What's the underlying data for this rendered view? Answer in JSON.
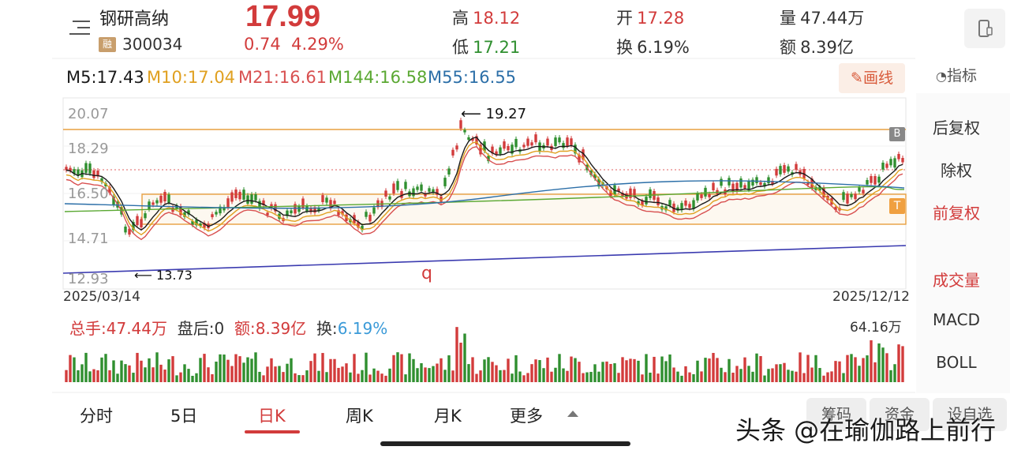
{
  "stock": {
    "name": "钢研高纳",
    "badge": "融",
    "code": "300034",
    "price": "17.99",
    "change": "0.74",
    "change_pct": "4.29%"
  },
  "quote": {
    "high_label": "高",
    "high": "18.12",
    "low_label": "低",
    "low": "17.21",
    "open_label": "开",
    "open": "17.28",
    "turnover_label": "换",
    "turnover": "6.19%",
    "volume_label": "量",
    "volume": "47.44万",
    "amount_label": "额",
    "amount": "8.39亿"
  },
  "ma_legend": [
    {
      "text": "M5:17.43",
      "color": "#1a1a1a"
    },
    {
      "text": "M10:17.04",
      "color": "#e0a020"
    },
    {
      "text": "M21:16.61",
      "color": "#d85050"
    },
    {
      "text": "M144:16.58",
      "color": "#5aa832"
    },
    {
      "text": "M55:16.55",
      "color": "#2c6fa8"
    }
  ],
  "toolbar": {
    "draw_label": "画线",
    "indicator_label": "指标"
  },
  "side_options": [
    {
      "label": "后复权",
      "active": false
    },
    {
      "label": "除权",
      "active": false
    },
    {
      "label": "前复权",
      "active": true
    },
    {
      "label": "成交量",
      "active": true
    },
    {
      "label": "MACD",
      "active": false
    },
    {
      "label": "BOLL",
      "active": false
    }
  ],
  "axis": {
    "y_ticks": [
      "20.07",
      "18.29",
      "16.50",
      "14.71",
      "12.93"
    ],
    "start_date": "2025/03/14",
    "end_date": "2025/12/12"
  },
  "annotations": {
    "high_note": "19.27",
    "low_note": "13.73",
    "q_mark": "q",
    "t_marker": "T",
    "b_marker": "B"
  },
  "volume_bar": {
    "total_label": "总手:",
    "total": "47.44万",
    "after_label": "盘后:",
    "after": "0",
    "amount_label": "额:",
    "amount": "8.39亿",
    "turnover_label": "换:",
    "turnover": "6.19%",
    "max": "64.16万"
  },
  "tabs": [
    {
      "label": "分时",
      "active": false
    },
    {
      "label": "5日",
      "active": false
    },
    {
      "label": "日K",
      "active": true
    },
    {
      "label": "周K",
      "active": false
    },
    {
      "label": "月K",
      "active": false
    },
    {
      "label": "更多",
      "active": false
    }
  ],
  "bottom_buttons": [
    "筹码",
    "资金",
    "设自选"
  ],
  "watermark": "头条 @在瑜伽路上前行",
  "colors": {
    "up": "#d23b3b",
    "down": "#2f8f2f",
    "accent": "#d23b3b",
    "level_line": "#e8a040",
    "trend_line": "#3b3bb0"
  }
}
